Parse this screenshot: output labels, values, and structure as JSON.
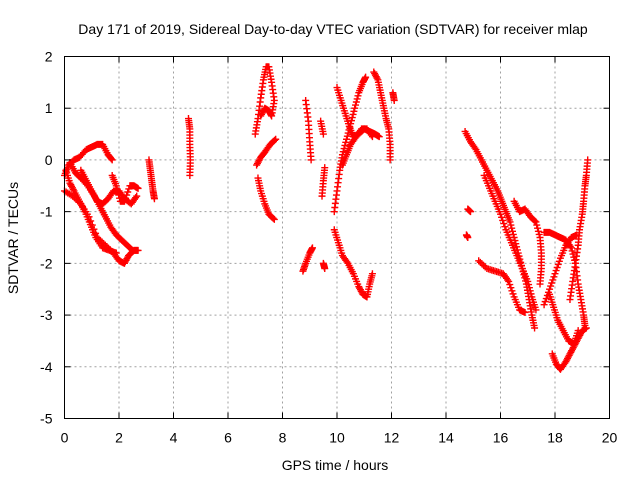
{
  "chart_data": {
    "type": "scatter",
    "title": "Day 171 of 2019, Sidereal Day-to-day VTEC variation (SDTVAR) for receiver mlap",
    "xlabel": "GPS time / hours",
    "ylabel": "SDTVAR / TECUs",
    "xlim": [
      0,
      20
    ],
    "ylim": [
      -5,
      2
    ],
    "x_ticks": [
      0,
      2,
      4,
      6,
      8,
      10,
      12,
      14,
      16,
      18,
      20
    ],
    "y_ticks": [
      -5,
      -4,
      -3,
      -2,
      -1,
      0,
      1,
      2
    ],
    "grid": true,
    "marker": "+",
    "marker_color": "#ff0000",
    "tracks": [
      [
        [
          0.0,
          -0.3
        ],
        [
          0.15,
          -0.1
        ],
        [
          0.35,
          0.0
        ],
        [
          0.55,
          0.05
        ],
        [
          0.8,
          0.2
        ],
        [
          1.0,
          0.25
        ],
        [
          1.2,
          0.3
        ],
        [
          1.4,
          0.3
        ],
        [
          1.6,
          0.1
        ],
        [
          1.75,
          0.0
        ]
      ],
      [
        [
          0.0,
          -0.6
        ],
        [
          0.3,
          -0.7
        ],
        [
          0.6,
          -0.85
        ],
        [
          0.9,
          -1.1
        ],
        [
          1.2,
          -1.5
        ],
        [
          1.5,
          -1.65
        ],
        [
          1.8,
          -1.8
        ],
        [
          2.0,
          -1.95
        ],
        [
          2.2,
          -2.0
        ],
        [
          2.35,
          -1.85
        ],
        [
          2.55,
          -1.75
        ],
        [
          2.7,
          -1.75
        ]
      ],
      [
        [
          0.05,
          -0.2
        ],
        [
          0.2,
          -0.45
        ],
        [
          0.35,
          -0.6
        ],
        [
          0.55,
          -0.8
        ],
        [
          0.75,
          -1.0
        ],
        [
          0.95,
          -1.25
        ],
        [
          1.15,
          -1.5
        ],
        [
          1.4,
          -1.7
        ],
        [
          1.65,
          -1.75
        ],
        [
          1.9,
          -1.8
        ]
      ],
      [
        [
          0.2,
          -0.05
        ],
        [
          0.4,
          -0.25
        ],
        [
          0.6,
          -0.35
        ],
        [
          0.85,
          -0.5
        ],
        [
          1.1,
          -0.7
        ],
        [
          1.3,
          -0.9
        ],
        [
          1.5,
          -1.1
        ],
        [
          1.7,
          -1.3
        ],
        [
          1.9,
          -1.45
        ],
        [
          2.1,
          -1.55
        ],
        [
          2.3,
          -1.65
        ],
        [
          2.5,
          -1.75
        ]
      ],
      [
        [
          0.6,
          -0.2
        ],
        [
          0.8,
          -0.4
        ],
        [
          1.0,
          -0.6
        ],
        [
          1.2,
          -0.8
        ],
        [
          1.4,
          -0.85
        ],
        [
          1.6,
          -0.75
        ],
        [
          1.8,
          -0.6
        ],
        [
          2.0,
          -0.6
        ],
        [
          2.2,
          -0.75
        ],
        [
          2.45,
          -0.85
        ],
        [
          2.65,
          -0.7
        ]
      ],
      [
        [
          1.75,
          -0.3
        ],
        [
          1.9,
          -0.5
        ],
        [
          2.05,
          -0.8
        ],
        [
          2.2,
          -0.8
        ],
        [
          2.4,
          -0.5
        ],
        [
          2.55,
          -0.5
        ],
        [
          2.7,
          -0.55
        ]
      ],
      [
        [
          3.1,
          0.0
        ],
        [
          3.15,
          -0.2
        ],
        [
          3.2,
          -0.4
        ],
        [
          3.25,
          -0.6
        ],
        [
          3.3,
          -0.75
        ]
      ],
      [
        [
          4.55,
          0.8
        ],
        [
          4.6,
          0.6
        ],
        [
          4.6,
          0.3
        ],
        [
          4.62,
          0.0
        ],
        [
          4.6,
          -0.3
        ]
      ],
      [
        [
          7.0,
          0.5
        ],
        [
          7.1,
          0.8
        ],
        [
          7.2,
          1.2
        ],
        [
          7.3,
          1.55
        ],
        [
          7.4,
          1.8
        ],
        [
          7.5,
          1.8
        ],
        [
          7.6,
          1.5
        ],
        [
          7.7,
          1.15
        ],
        [
          7.6,
          0.85
        ],
        [
          7.5,
          0.95
        ],
        [
          7.35,
          1.0
        ],
        [
          7.2,
          0.85
        ]
      ],
      [
        [
          7.05,
          -0.1
        ],
        [
          7.2,
          0.05
        ],
        [
          7.35,
          0.15
        ],
        [
          7.55,
          0.3
        ],
        [
          7.75,
          0.4
        ]
      ],
      [
        [
          7.1,
          -0.35
        ],
        [
          7.2,
          -0.6
        ],
        [
          7.35,
          -0.85
        ],
        [
          7.5,
          -1.05
        ],
        [
          7.7,
          -1.15
        ]
      ],
      [
        [
          8.85,
          1.15
        ],
        [
          8.95,
          0.75
        ],
        [
          9.0,
          0.35
        ],
        [
          9.05,
          0.0
        ]
      ],
      [
        [
          8.75,
          -2.15
        ],
        [
          8.85,
          -2.0
        ],
        [
          9.0,
          -1.8
        ],
        [
          9.1,
          -1.7
        ]
      ],
      [
        [
          9.4,
          0.75
        ],
        [
          9.5,
          0.5
        ]
      ],
      [
        [
          9.45,
          -0.7
        ],
        [
          9.5,
          -0.4
        ],
        [
          9.55,
          -0.15
        ]
      ],
      [
        [
          9.5,
          -2.0
        ],
        [
          9.55,
          -2.1
        ]
      ],
      [
        [
          9.9,
          -1.0
        ],
        [
          10.0,
          -0.6
        ],
        [
          10.1,
          -0.2
        ],
        [
          10.2,
          0.1
        ],
        [
          10.35,
          0.4
        ],
        [
          10.5,
          0.7
        ],
        [
          10.65,
          1.0
        ],
        [
          10.8,
          1.3
        ],
        [
          10.95,
          1.5
        ],
        [
          11.05,
          1.6
        ]
      ],
      [
        [
          9.9,
          -1.35
        ],
        [
          10.05,
          -1.6
        ],
        [
          10.2,
          -1.85
        ],
        [
          10.4,
          -2.0
        ],
        [
          10.6,
          -2.2
        ],
        [
          10.8,
          -2.45
        ],
        [
          10.95,
          -2.6
        ],
        [
          11.1,
          -2.65
        ],
        [
          11.2,
          -2.4
        ],
        [
          11.3,
          -2.2
        ]
      ],
      [
        [
          10.0,
          1.4
        ],
        [
          10.15,
          1.15
        ],
        [
          10.3,
          0.9
        ],
        [
          10.45,
          0.65
        ],
        [
          10.6,
          0.45
        ],
        [
          10.8,
          0.5
        ],
        [
          11.0,
          0.6
        ],
        [
          11.2,
          0.55
        ],
        [
          11.4,
          0.5
        ],
        [
          11.55,
          0.45
        ]
      ],
      [
        [
          10.2,
          -0.1
        ],
        [
          10.35,
          0.1
        ],
        [
          10.5,
          0.3
        ],
        [
          10.7,
          0.45
        ],
        [
          10.9,
          0.6
        ],
        [
          11.1,
          0.6
        ],
        [
          11.3,
          0.45
        ]
      ],
      [
        [
          11.35,
          1.7
        ],
        [
          11.5,
          1.55
        ],
        [
          11.6,
          1.3
        ],
        [
          11.7,
          1.05
        ],
        [
          11.8,
          0.8
        ],
        [
          11.9,
          0.6
        ],
        [
          11.95,
          0.3
        ],
        [
          11.95,
          0.0
        ]
      ],
      [
        [
          12.05,
          1.3
        ],
        [
          12.1,
          1.15
        ]
      ],
      [
        [
          14.7,
          0.55
        ],
        [
          14.9,
          0.35
        ],
        [
          15.1,
          0.2
        ],
        [
          15.3,
          0.0
        ],
        [
          15.5,
          -0.2
        ],
        [
          15.7,
          -0.4
        ],
        [
          15.9,
          -0.6
        ],
        [
          16.05,
          -0.8
        ],
        [
          16.2,
          -1.0
        ],
        [
          16.35,
          -1.2
        ],
        [
          16.5,
          -1.5
        ],
        [
          16.65,
          -1.8
        ],
        [
          16.8,
          -2.1
        ],
        [
          16.95,
          -2.4
        ],
        [
          17.05,
          -2.7
        ],
        [
          17.15,
          -3.0
        ],
        [
          17.25,
          -3.25
        ]
      ],
      [
        [
          15.4,
          -0.3
        ],
        [
          15.6,
          -0.55
        ],
        [
          15.8,
          -0.8
        ],
        [
          16.0,
          -1.05
        ],
        [
          16.2,
          -1.35
        ],
        [
          16.4,
          -1.6
        ],
        [
          16.6,
          -1.85
        ],
        [
          16.8,
          -2.1
        ],
        [
          17.0,
          -2.35
        ],
        [
          17.15,
          -2.65
        ],
        [
          17.3,
          -2.9
        ]
      ],
      [
        [
          14.75,
          -1.45
        ],
        [
          14.8,
          -1.5
        ]
      ],
      [
        [
          14.8,
          -0.95
        ],
        [
          14.9,
          -1.0
        ]
      ],
      [
        [
          15.2,
          -1.95
        ],
        [
          15.5,
          -2.1
        ],
        [
          15.8,
          -2.15
        ],
        [
          16.1,
          -2.2
        ],
        [
          16.3,
          -2.35
        ],
        [
          16.5,
          -2.65
        ],
        [
          16.7,
          -2.9
        ],
        [
          16.9,
          -2.95
        ]
      ],
      [
        [
          16.5,
          -0.8
        ],
        [
          16.7,
          -1.0
        ],
        [
          16.9,
          -0.95
        ],
        [
          17.1,
          -1.1
        ],
        [
          17.3,
          -1.2
        ],
        [
          17.45,
          -1.5
        ],
        [
          17.5,
          -1.8
        ],
        [
          17.5,
          -2.1
        ],
        [
          17.45,
          -2.4
        ]
      ],
      [
        [
          17.6,
          -1.4
        ],
        [
          17.8,
          -1.4
        ],
        [
          18.0,
          -1.45
        ],
        [
          18.2,
          -1.5
        ],
        [
          18.4,
          -1.55
        ],
        [
          18.6,
          -1.7
        ],
        [
          18.75,
          -2.0
        ],
        [
          18.85,
          -2.4
        ],
        [
          18.95,
          -2.7
        ],
        [
          19.05,
          -3.0
        ],
        [
          19.1,
          -3.2
        ]
      ],
      [
        [
          17.6,
          -2.8
        ],
        [
          17.8,
          -2.5
        ],
        [
          18.0,
          -2.2
        ],
        [
          18.2,
          -1.9
        ],
        [
          18.4,
          -1.65
        ],
        [
          18.6,
          -1.5
        ],
        [
          18.8,
          -1.45
        ]
      ],
      [
        [
          17.9,
          -3.75
        ],
        [
          18.05,
          -3.95
        ],
        [
          18.2,
          -4.05
        ],
        [
          18.4,
          -3.9
        ],
        [
          18.55,
          -3.75
        ],
        [
          18.7,
          -3.6
        ],
        [
          18.85,
          -3.45
        ],
        [
          19.0,
          -3.3
        ],
        [
          19.15,
          -3.25
        ]
      ],
      [
        [
          17.8,
          -2.6
        ],
        [
          17.95,
          -2.85
        ],
        [
          18.1,
          -3.1
        ],
        [
          18.3,
          -3.3
        ],
        [
          18.5,
          -3.5
        ],
        [
          18.7,
          -3.55
        ],
        [
          18.85,
          -3.3
        ]
      ],
      [
        [
          18.55,
          -2.7
        ],
        [
          18.65,
          -2.35
        ],
        [
          18.75,
          -2.0
        ],
        [
          18.85,
          -1.65
        ],
        [
          18.9,
          -1.35
        ],
        [
          19.0,
          -1.05
        ],
        [
          19.05,
          -0.8
        ],
        [
          19.1,
          -0.5
        ],
        [
          19.15,
          -0.3
        ],
        [
          19.2,
          0.0
        ]
      ]
    ]
  }
}
